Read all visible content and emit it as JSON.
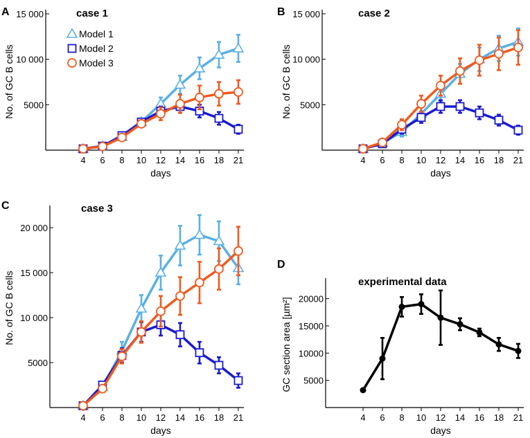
{
  "colors": {
    "model1": "#5aafe6",
    "model2": "#1a1ad0",
    "model3": "#f05a1e",
    "experimental": "#000000"
  },
  "chart_data": [
    {
      "panel": "A",
      "title": "case 1",
      "type": "line",
      "xlabel": "days",
      "ylabel": "No. of GC  B cells",
      "x": [
        4,
        6,
        8,
        10,
        12,
        14,
        16,
        18,
        21
      ],
      "xticks": [
        4,
        6,
        8,
        10,
        12,
        14,
        16,
        18,
        21
      ],
      "ylim": [
        0,
        15000
      ],
      "yticks": [
        5000,
        10000,
        15000
      ],
      "ytick_labels": [
        "5000",
        "10 000",
        "15 000"
      ],
      "legend": {
        "position": "top-left",
        "entries": [
          "Model 1",
          "Model 2",
          "Model 3"
        ]
      },
      "series": [
        {
          "name": "Model 1",
          "marker": "triangle",
          "color": "#5aafe6",
          "values": [
            150,
            450,
            1450,
            3100,
            5100,
            7200,
            9000,
            10500,
            11200
          ],
          "errors": [
            0,
            0,
            0,
            0,
            700,
            1000,
            1200,
            1400,
            1500
          ]
        },
        {
          "name": "Model 2",
          "marker": "square",
          "color": "#1a1ad0",
          "values": [
            150,
            450,
            1600,
            3100,
            4300,
            4800,
            4300,
            3500,
            2300
          ],
          "errors": [
            0,
            0,
            0,
            0,
            500,
            700,
            700,
            700,
            500
          ]
        },
        {
          "name": "Model 3",
          "marker": "circle",
          "color": "#f05a1e",
          "values": [
            150,
            400,
            1400,
            2900,
            4000,
            5100,
            5800,
            6200,
            6400
          ],
          "errors": [
            0,
            0,
            0,
            0,
            700,
            1000,
            1300,
            1300,
            1300
          ]
        }
      ]
    },
    {
      "panel": "B",
      "title": "case 2",
      "type": "line",
      "xlabel": "days",
      "ylabel": "No. of GC  B cells",
      "x": [
        4,
        6,
        8,
        10,
        12,
        14,
        16,
        18,
        21
      ],
      "xticks": [
        4,
        6,
        8,
        10,
        12,
        14,
        16,
        18,
        21
      ],
      "ylim": [
        0,
        15000
      ],
      "yticks": [
        5000,
        10000,
        15000
      ],
      "ytick_labels": [
        "5000",
        "10 000",
        "15 000"
      ],
      "series": [
        {
          "name": "Model 1",
          "marker": "triangle",
          "color": "#5aafe6",
          "values": [
            150,
            800,
            2000,
            4000,
            6200,
            8400,
            10000,
            11200,
            11900
          ],
          "errors": [
            0,
            0,
            500,
            700,
            900,
            1100,
            1300,
            1400,
            1500
          ]
        },
        {
          "name": "Model 2",
          "marker": "square",
          "color": "#1a1ad0",
          "values": [
            150,
            700,
            2300,
            3600,
            4800,
            4800,
            4100,
            3300,
            2200
          ],
          "errors": [
            0,
            0,
            500,
            600,
            700,
            700,
            700,
            600,
            500
          ]
        },
        {
          "name": "Model 3",
          "marker": "circle",
          "color": "#f05a1e",
          "values": [
            150,
            850,
            2800,
            5100,
            7100,
            8700,
            9900,
            10600,
            11300
          ],
          "errors": [
            0,
            0,
            600,
            900,
            1100,
            1400,
            1700,
            1800,
            1900
          ]
        }
      ]
    },
    {
      "panel": "C",
      "title": "case 3",
      "type": "line",
      "xlabel": "days",
      "ylabel": "No. of GC  B cells",
      "x": [
        4,
        6,
        8,
        10,
        12,
        14,
        16,
        18,
        21
      ],
      "xticks": [
        4,
        6,
        8,
        10,
        12,
        14,
        16,
        18,
        21
      ],
      "ylim": [
        0,
        22000
      ],
      "yticks": [
        5000,
        10000,
        15000,
        20000
      ],
      "ytick_labels": [
        "5000",
        "10 000",
        "15 000",
        "20 000"
      ],
      "series": [
        {
          "name": "Model 1",
          "marker": "triangle",
          "color": "#5aafe6",
          "values": [
            200,
            2300,
            6300,
            11000,
            15000,
            18000,
            19200,
            18500,
            15500
          ],
          "errors": [
            0,
            0,
            1000,
            1500,
            1900,
            2200,
            2200,
            2200,
            1800
          ]
        },
        {
          "name": "Model 2",
          "marker": "square",
          "color": "#1a1ad0",
          "values": [
            200,
            2500,
            5800,
            8400,
            9200,
            8100,
            6100,
            4700,
            3000
          ],
          "errors": [
            0,
            0,
            800,
            1100,
            1200,
            1300,
            1200,
            900,
            800
          ]
        },
        {
          "name": "Model 3",
          "marker": "circle",
          "color": "#f05a1e",
          "values": [
            200,
            2100,
            5700,
            8400,
            10700,
            12400,
            13900,
            15400,
            17400
          ],
          "errors": [
            0,
            0,
            800,
            1200,
            1700,
            2100,
            2300,
            2300,
            2700
          ]
        }
      ]
    },
    {
      "panel": "D",
      "title": "experimental data",
      "type": "line",
      "xlabel": "days",
      "ylabel": "GC section area [µm²]",
      "x": [
        4,
        6,
        8,
        10,
        12,
        14,
        16,
        18,
        21
      ],
      "xticks": [
        4,
        6,
        8,
        10,
        12,
        14,
        16,
        18,
        21
      ],
      "ylim": [
        0,
        23000
      ],
      "yticks": [
        5000,
        10000,
        15000,
        20000
      ],
      "ytick_labels": [
        "5000",
        "10000",
        "15000",
        "20000"
      ],
      "series": [
        {
          "name": "experimental data",
          "marker": "dot",
          "color": "#000000",
          "values": [
            3200,
            9000,
            18500,
            19000,
            16500,
            15300,
            13800,
            11600,
            10400
          ],
          "errors": [
            0,
            3800,
            1800,
            1800,
            5000,
            1100,
            700,
            1200,
            1300
          ]
        }
      ]
    }
  ]
}
